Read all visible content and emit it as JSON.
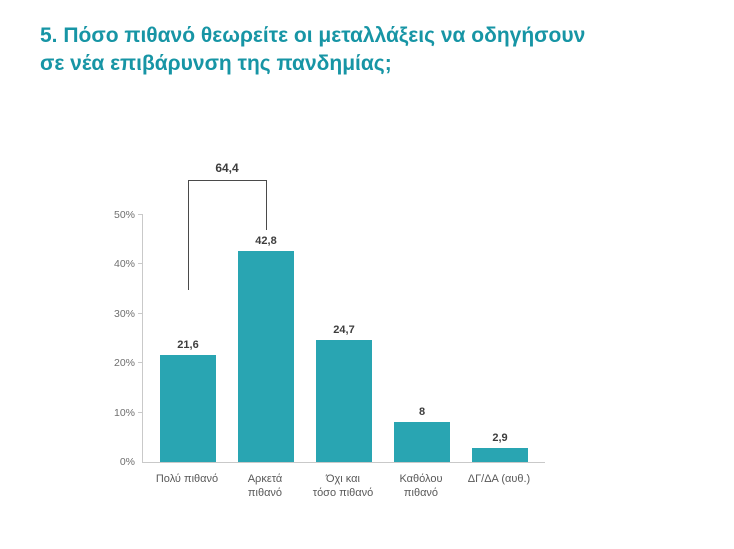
{
  "title": "5. Πόσο πιθανό θεωρείτε οι μεταλλάξεις να οδηγήσουν σε νέα επιβάρυνση της πανδημίας;",
  "chart_data": {
    "type": "bar",
    "title": "5. Πόσο πιθανό θεωρείτε οι μεταλλάξεις να οδηγήσουν σε νέα επιβάρυνση της πανδημίας;",
    "categories": [
      "Πολύ πιθανό",
      "Αρκετά\nπιθανό",
      "Όχι και\nτόσο πιθανό",
      "Καθόλου\nπιθανό",
      "ΔΓ/ΔΑ (αυθ.)"
    ],
    "values": [
      21.6,
      42.8,
      24.7,
      8,
      2.9
    ],
    "value_labels": [
      "21,6",
      "42,8",
      "24,7",
      "8",
      "2,9"
    ],
    "xlabel": "",
    "ylabel": "",
    "ylim": [
      0,
      50
    ],
    "ytick_values": [
      0,
      10,
      20,
      30,
      40,
      50
    ],
    "ytick_labels": [
      "0%",
      "10%",
      "20%",
      "30%",
      "40%",
      "50%"
    ],
    "grid": false,
    "legend": "none",
    "bar_color": "#29a5b2",
    "annotation": {
      "label": "64,4",
      "spans_categories": [
        "Πολύ πιθανό",
        "Αρκετά\nπιθανό"
      ]
    }
  },
  "colors": {
    "title": "#1795a5",
    "bar": "#29a5b2",
    "axis": "#c9c9c9",
    "value_text": "#3d3d3d",
    "tick_text": "#6f6f6f",
    "category_text": "#595959"
  }
}
